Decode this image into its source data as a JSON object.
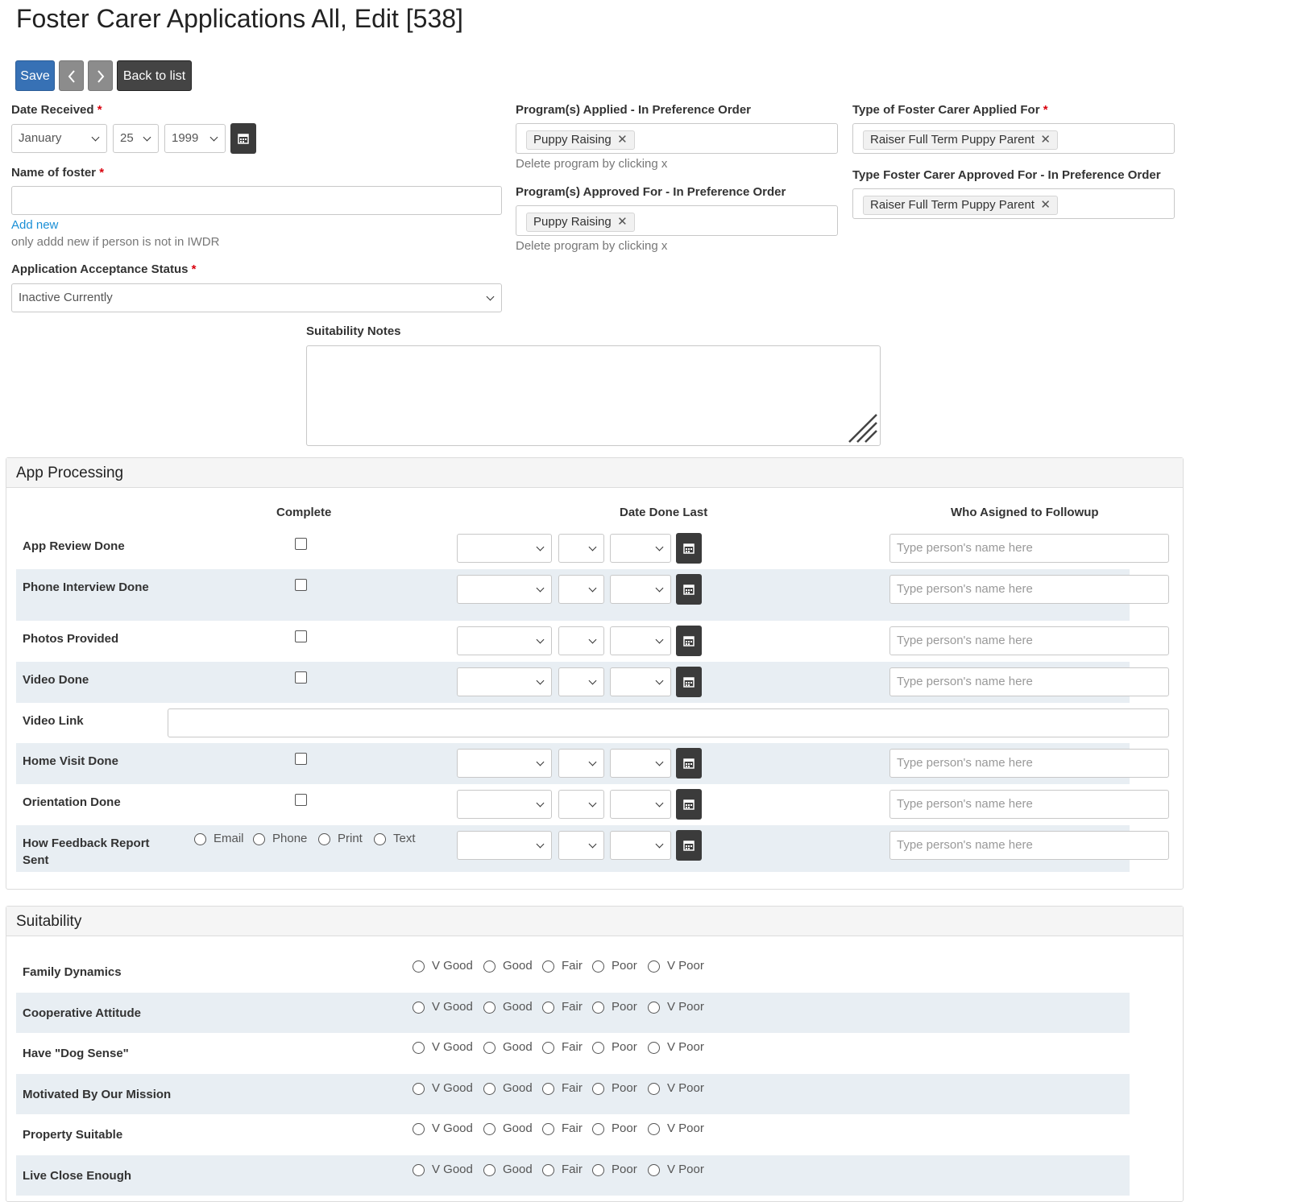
{
  "page": {
    "title": "Foster Carer Applications All, Edit [538]"
  },
  "toolbar": {
    "save_label": "Save",
    "prev_icon": "chevron-left-icon",
    "next_icon": "chevron-right-icon",
    "back_label": "Back to list"
  },
  "form": {
    "date_received": {
      "label": "Date Received",
      "required_mark": "*",
      "month": "January",
      "day": "25",
      "year": "1999"
    },
    "name_of_foster": {
      "label": "Name of foster",
      "required_mark": "*",
      "value": "",
      "add_new_link": "Add new",
      "hint": "only addd new if person is not in IWDR"
    },
    "acceptance_status": {
      "label": "Application Acceptance Status",
      "required_mark": "*",
      "value": "Inactive Currently"
    },
    "programs_applied": {
      "label": "Program(s) Applied - In Preference Order",
      "tag": "Puppy Raising",
      "hint": "Delete program by clicking x"
    },
    "programs_approved": {
      "label": "Program(s) Approved For - In Preference Order",
      "tag": "Puppy Raising",
      "hint": "Delete program by clicking x"
    },
    "type_applied": {
      "label": "Type of Foster Carer Applied For",
      "required_mark": "*",
      "tag": "Raiser Full Term Puppy Parent"
    },
    "type_approved": {
      "label": "Type Foster Carer Approved For - In Preference Order",
      "tag": "Raiser Full Term Puppy Parent"
    },
    "suitability_notes": {
      "label": "Suitability Notes",
      "value": ""
    }
  },
  "app_processing": {
    "title": "App Processing",
    "headers": {
      "complete": "Complete",
      "date_done_last": "Date Done Last",
      "who_assigned": "Who Asigned to Followup"
    },
    "placeholder": "Type person's name here",
    "rows": [
      {
        "label": "App Review Done"
      },
      {
        "label": "Phone Interview Done"
      },
      {
        "label": "Photos Provided"
      },
      {
        "label": "Video Done"
      },
      {
        "label": "Video Link"
      },
      {
        "label": "Home Visit Done"
      },
      {
        "label": "Orientation Done"
      },
      {
        "label": "How Feedback Report Sent"
      }
    ],
    "feedback_options": [
      "Email",
      "Phone",
      "Print",
      "Text"
    ]
  },
  "suitability": {
    "title": "Suitability",
    "options": [
      "V Good",
      "Good",
      "Fair",
      "Poor",
      "V Poor"
    ],
    "rows": [
      {
        "label": "Family Dynamics"
      },
      {
        "label": "Cooperative Attitude"
      },
      {
        "label": "Have \"Dog Sense\""
      },
      {
        "label": "Motivated By Our Mission"
      },
      {
        "label": "Property Suitable"
      },
      {
        "label": "Live Close Enough"
      }
    ]
  }
}
